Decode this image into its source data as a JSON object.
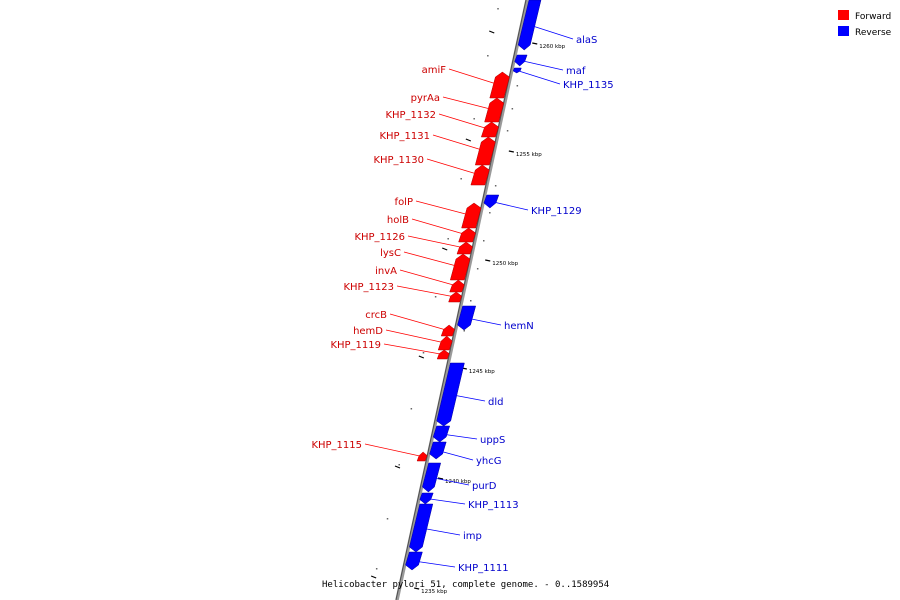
{
  "caption": "Helicobacter pylori 51, complete genome. - 0..1589954",
  "legend": [
    {
      "label": "Forward",
      "color": "#ff0000"
    },
    {
      "label": "Reverse",
      "color": "#0000ff"
    }
  ],
  "ticks": [
    {
      "label": "1260 kbp",
      "value": 1260
    },
    {
      "label": "1255 kbp",
      "value": 1255
    },
    {
      "label": "1250 kbp",
      "value": 1250
    },
    {
      "label": "1245 kbp",
      "value": 1245
    },
    {
      "label": "1240 kbp",
      "value": 1240
    },
    {
      "label": "1235 kbp",
      "value": 1235
    }
  ],
  "genes": [
    {
      "name": "alaS",
      "strand": "reverse"
    },
    {
      "name": "maf",
      "strand": "reverse"
    },
    {
      "name": "KHP_1135",
      "strand": "reverse"
    },
    {
      "name": "amiF",
      "strand": "forward"
    },
    {
      "name": "pyrAa",
      "strand": "forward"
    },
    {
      "name": "KHP_1132",
      "strand": "forward"
    },
    {
      "name": "KHP_1131",
      "strand": "forward"
    },
    {
      "name": "KHP_1130",
      "strand": "forward"
    },
    {
      "name": "KHP_1129",
      "strand": "reverse"
    },
    {
      "name": "folP",
      "strand": "forward"
    },
    {
      "name": "holB",
      "strand": "forward"
    },
    {
      "name": "KHP_1126",
      "strand": "forward"
    },
    {
      "name": "lysC",
      "strand": "forward"
    },
    {
      "name": "invA",
      "strand": "forward"
    },
    {
      "name": "KHP_1123",
      "strand": "forward"
    },
    {
      "name": "hemN",
      "strand": "reverse"
    },
    {
      "name": "crcB",
      "strand": "forward"
    },
    {
      "name": "hemD",
      "strand": "forward"
    },
    {
      "name": "KHP_1119",
      "strand": "forward"
    },
    {
      "name": "dld",
      "strand": "reverse"
    },
    {
      "name": "uppS",
      "strand": "reverse"
    },
    {
      "name": "KHP_1115",
      "strand": "forward"
    },
    {
      "name": "yhcG",
      "strand": "reverse"
    },
    {
      "name": "purD",
      "strand": "reverse"
    },
    {
      "name": "KHP_1113",
      "strand": "reverse"
    },
    {
      "name": "imp",
      "strand": "reverse"
    },
    {
      "name": "KHP_1111",
      "strand": "reverse"
    }
  ]
}
